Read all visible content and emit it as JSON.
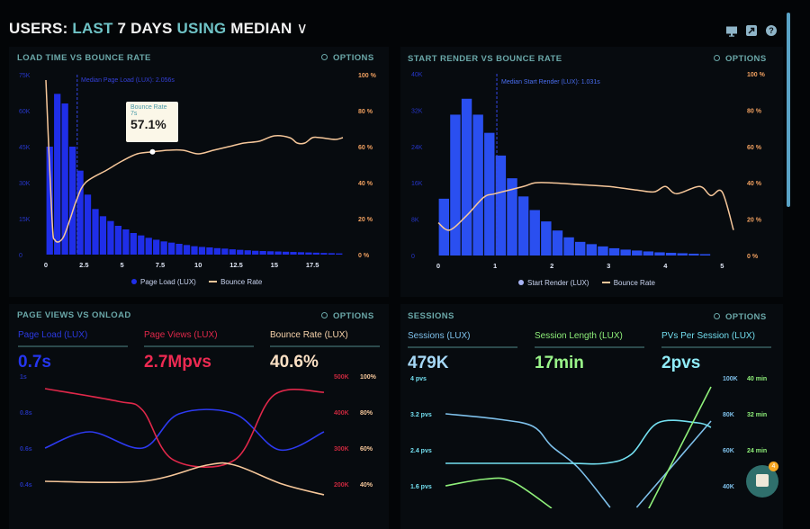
{
  "header": {
    "prefix": "USERS:",
    "range": "LAST",
    "days": "7 DAYS",
    "using": "USING",
    "metric": "MEDIAN",
    "chevron": "∨",
    "icons": [
      "monitor-icon",
      "share-icon",
      "help-icon"
    ],
    "help_glyph": "?"
  },
  "options_label": "OPTIONS",
  "colors": {
    "accent": "#6fc3c6",
    "bar_blue": "#1f2ee8",
    "bounce_orange": "#f6c79a",
    "page_views_red": "#e0284a",
    "sessions_blue": "#7ec0ea",
    "pvs_cyan": "#73dff0",
    "session_length_green": "#8ff07a"
  },
  "panels": {
    "load_time": {
      "title": "LOAD TIME VS BOUNCE RATE",
      "median_label": "Median Page Load (LUX): 2.056s",
      "tooltip": {
        "title": "Bounce Rate",
        "sub": "7s",
        "value": "57.1%"
      },
      "legend": [
        "Page Load (LUX)",
        "Bounce Rate"
      ]
    },
    "start_render": {
      "title": "START RENDER VS BOUNCE RATE",
      "median_label": "Median Start Render (LUX): 1.031s",
      "legend": [
        "Start Render (LUX)",
        "Bounce Rate"
      ]
    },
    "page_views": {
      "title": "PAGE VIEWS VS ONLOAD",
      "stats": [
        {
          "label": "Page Load (LUX)",
          "value": "0.7s"
        },
        {
          "label": "Page Views (LUX)",
          "value": "2.7Mpvs"
        },
        {
          "label": "Bounce Rate (LUX)",
          "value": "40.6%"
        }
      ]
    },
    "sessions": {
      "title": "SESSIONS",
      "stats": [
        {
          "label": "Sessions (LUX)",
          "value": "479K"
        },
        {
          "label": "Session Length (LUX)",
          "value": "17min"
        },
        {
          "label": "PVs Per Session (LUX)",
          "value": "2pvs"
        }
      ]
    }
  },
  "chat": {
    "badge": "4"
  },
  "chart_data": [
    {
      "id": "load_time",
      "type": "bar",
      "title": "LOAD TIME VS BOUNCE RATE",
      "x_ticks": [
        "0",
        "2.5",
        "5",
        "7.5",
        "10",
        "12.5",
        "15",
        "17.5"
      ],
      "x_tick_values": [
        0,
        2.5,
        5,
        7.5,
        10,
        12.5,
        15,
        17.5
      ],
      "y_left_ticks": [
        "0",
        "15K",
        "30K",
        "45K",
        "60K",
        "75K"
      ],
      "y_left_tick_values": [
        0,
        15,
        30,
        45,
        60,
        75
      ],
      "y_right_ticks": [
        "0 %",
        "20 %",
        "40 %",
        "60 %",
        "80 %",
        "100 %"
      ],
      "y_right_tick_values": [
        0,
        20,
        40,
        60,
        80,
        100
      ],
      "xlim": [
        0,
        19.5
      ],
      "ylim_left": [
        0,
        75
      ],
      "ylim_right": [
        0,
        100
      ],
      "median": 2.056,
      "bar_width": 0.5,
      "bars": [
        45,
        67,
        63,
        45,
        35,
        25,
        19,
        16,
        14,
        12,
        10.5,
        9,
        8,
        7,
        6.2,
        5.5,
        5,
        4.5,
        4,
        3.5,
        3.2,
        3,
        2.7,
        2.5,
        2.2,
        2,
        1.8,
        1.6,
        1.5,
        1.4,
        1.3,
        1.2,
        1.1,
        1,
        0.9,
        0.8,
        0.7,
        0.6,
        0.5
      ],
      "line": [
        [
          0,
          97
        ],
        [
          0.4,
          20
        ],
        [
          0.6,
          8
        ],
        [
          1.1,
          9
        ],
        [
          1.6,
          20
        ],
        [
          2,
          30
        ],
        [
          2.6,
          40
        ],
        [
          4,
          47
        ],
        [
          5,
          52
        ],
        [
          6,
          56
        ],
        [
          7,
          57.1
        ],
        [
          8,
          58
        ],
        [
          9,
          58
        ],
        [
          10,
          56
        ],
        [
          11,
          58
        ],
        [
          12,
          60
        ],
        [
          13,
          62
        ],
        [
          14,
          63
        ],
        [
          15,
          66
        ],
        [
          16,
          65
        ],
        [
          16.5,
          62
        ],
        [
          17,
          62
        ],
        [
          17.5,
          65
        ],
        [
          18,
          65
        ],
        [
          19,
          64
        ],
        [
          19.5,
          65
        ]
      ],
      "tooltip_x": 7
    },
    {
      "id": "start_render",
      "type": "bar",
      "title": "START RENDER VS BOUNCE RATE",
      "x_ticks": [
        "0",
        "1",
        "2",
        "3",
        "4",
        "5"
      ],
      "x_tick_values": [
        0,
        1,
        2,
        3,
        4,
        5
      ],
      "y_left_ticks": [
        "0",
        "8K",
        "16K",
        "24K",
        "32K",
        "40K"
      ],
      "y_left_tick_values": [
        0,
        8,
        16,
        24,
        32,
        40
      ],
      "y_right_ticks": [
        "0 %",
        "20 %",
        "40 %",
        "60 %",
        "80 %",
        "100 %"
      ],
      "y_right_tick_values": [
        0,
        20,
        40,
        60,
        80,
        100
      ],
      "xlim": [
        0,
        5.2
      ],
      "ylim_left": [
        0,
        40
      ],
      "ylim_right": [
        0,
        100
      ],
      "median": 1.031,
      "bar_width": 0.2,
      "bars": [
        12.5,
        31,
        34.5,
        31,
        27,
        22,
        17,
        13,
        10,
        7.5,
        5.5,
        4,
        3,
        2.5,
        2,
        1.6,
        1.3,
        1.1,
        0.9,
        0.7,
        0.6,
        0.5,
        0.4,
        0.3
      ],
      "line": [
        [
          0,
          18
        ],
        [
          0.2,
          14
        ],
        [
          0.5,
          22
        ],
        [
          0.8,
          32
        ],
        [
          1,
          34
        ],
        [
          1.5,
          38
        ],
        [
          1.7,
          40
        ],
        [
          2,
          40
        ],
        [
          2.5,
          39
        ],
        [
          3,
          38
        ],
        [
          3.5,
          36
        ],
        [
          3.8,
          35
        ],
        [
          4,
          38
        ],
        [
          4.2,
          34
        ],
        [
          4.6,
          38
        ],
        [
          4.8,
          33
        ],
        [
          5,
          35
        ],
        [
          5.2,
          14
        ]
      ]
    },
    {
      "id": "page_views",
      "type": "line",
      "title": "PAGE VIEWS VS ONLOAD",
      "xlim": [
        0,
        10
      ],
      "y_left_ticks": [
        "1s",
        "0.8s",
        "0.6s",
        "0.4s"
      ],
      "y_left_tick_values": [
        1,
        0.8,
        0.6,
        0.4
      ],
      "y_right1_ticks": [
        "500K",
        "400K",
        "300K",
        "200K"
      ],
      "y_right1_tick_values": [
        500,
        400,
        300,
        200
      ],
      "y_right2_ticks": [
        "100%",
        "80%",
        "60%",
        "40%"
      ],
      "y_right2_tick_values": [
        100,
        80,
        60,
        40
      ],
      "series": [
        {
          "name": "Page Load (LUX)",
          "axis": "left",
          "points": [
            [
              0,
              0.6
            ],
            [
              1.6,
              0.69
            ],
            [
              3.5,
              0.6
            ],
            [
              4.8,
              0.79
            ],
            [
              6.8,
              0.79
            ],
            [
              8.4,
              0.59
            ],
            [
              10,
              0.69
            ]
          ]
        },
        {
          "name": "Page Views (LUX)",
          "axis": "right1",
          "points": [
            [
              0,
              465
            ],
            [
              2.6,
              430
            ],
            [
              3.5,
              405
            ],
            [
              4.6,
              267
            ],
            [
              6.8,
              267
            ],
            [
              8.2,
              447
            ],
            [
              10,
              455
            ]
          ]
        },
        {
          "name": "Bounce Rate (LUX)",
          "axis": "right2",
          "points": [
            [
              0,
              41.5
            ],
            [
              3.5,
              41.5
            ],
            [
              5.8,
              50.5
            ],
            [
              6.8,
              50.5
            ],
            [
              8.5,
              40
            ],
            [
              10,
              34
            ]
          ]
        }
      ]
    },
    {
      "id": "sessions",
      "type": "line",
      "title": "SESSIONS",
      "xlim": [
        0,
        10
      ],
      "y_left_ticks": [
        "4 pvs",
        "3.2 pvs",
        "2.4 pvs",
        "1.6 pvs"
      ],
      "y_left_tick_values": [
        4,
        3.2,
        2.4,
        1.6
      ],
      "y_right1_ticks": [
        "100K",
        "80K",
        "60K",
        "40K"
      ],
      "y_right1_tick_values": [
        100,
        80,
        60,
        40
      ],
      "y_right2_ticks": [
        "40 min",
        "32 min",
        "24 min"
      ],
      "y_right2_tick_values": [
        40,
        32,
        24
      ],
      "series": [
        {
          "name": "Sessions (LUX)",
          "axis": "right1",
          "segments": [
            [
              [
                0,
                80
              ],
              [
                2,
                77
              ],
              [
                3.3,
                73
              ],
              [
                4,
                62
              ],
              [
                5,
                50
              ],
              [
                6.2,
                28
              ]
            ],
            [
              [
                7.2,
                28
              ],
              [
                10,
                76
              ]
            ]
          ]
        },
        {
          "name": "PVs Per Session (LUX)",
          "axis": "left",
          "segments": [
            [
              [
                0,
                2.1
              ],
              [
                4.5,
                2.1
              ],
              [
                6,
                2.1
              ],
              [
                7,
                2.3
              ],
              [
                8,
                3.0
              ],
              [
                9.5,
                3.0
              ],
              [
                10,
                2.9
              ]
            ]
          ]
        },
        {
          "name": "Session Length (LUX)",
          "axis": "right2",
          "segments": [
            [
              [
                0,
                16
              ],
              [
                1.5,
                17.5
              ],
              [
                2.5,
                17
              ],
              [
                4,
                11
              ]
            ],
            [
              [
                7.4,
                8
              ],
              [
                10,
                38
              ]
            ]
          ]
        }
      ]
    }
  ]
}
